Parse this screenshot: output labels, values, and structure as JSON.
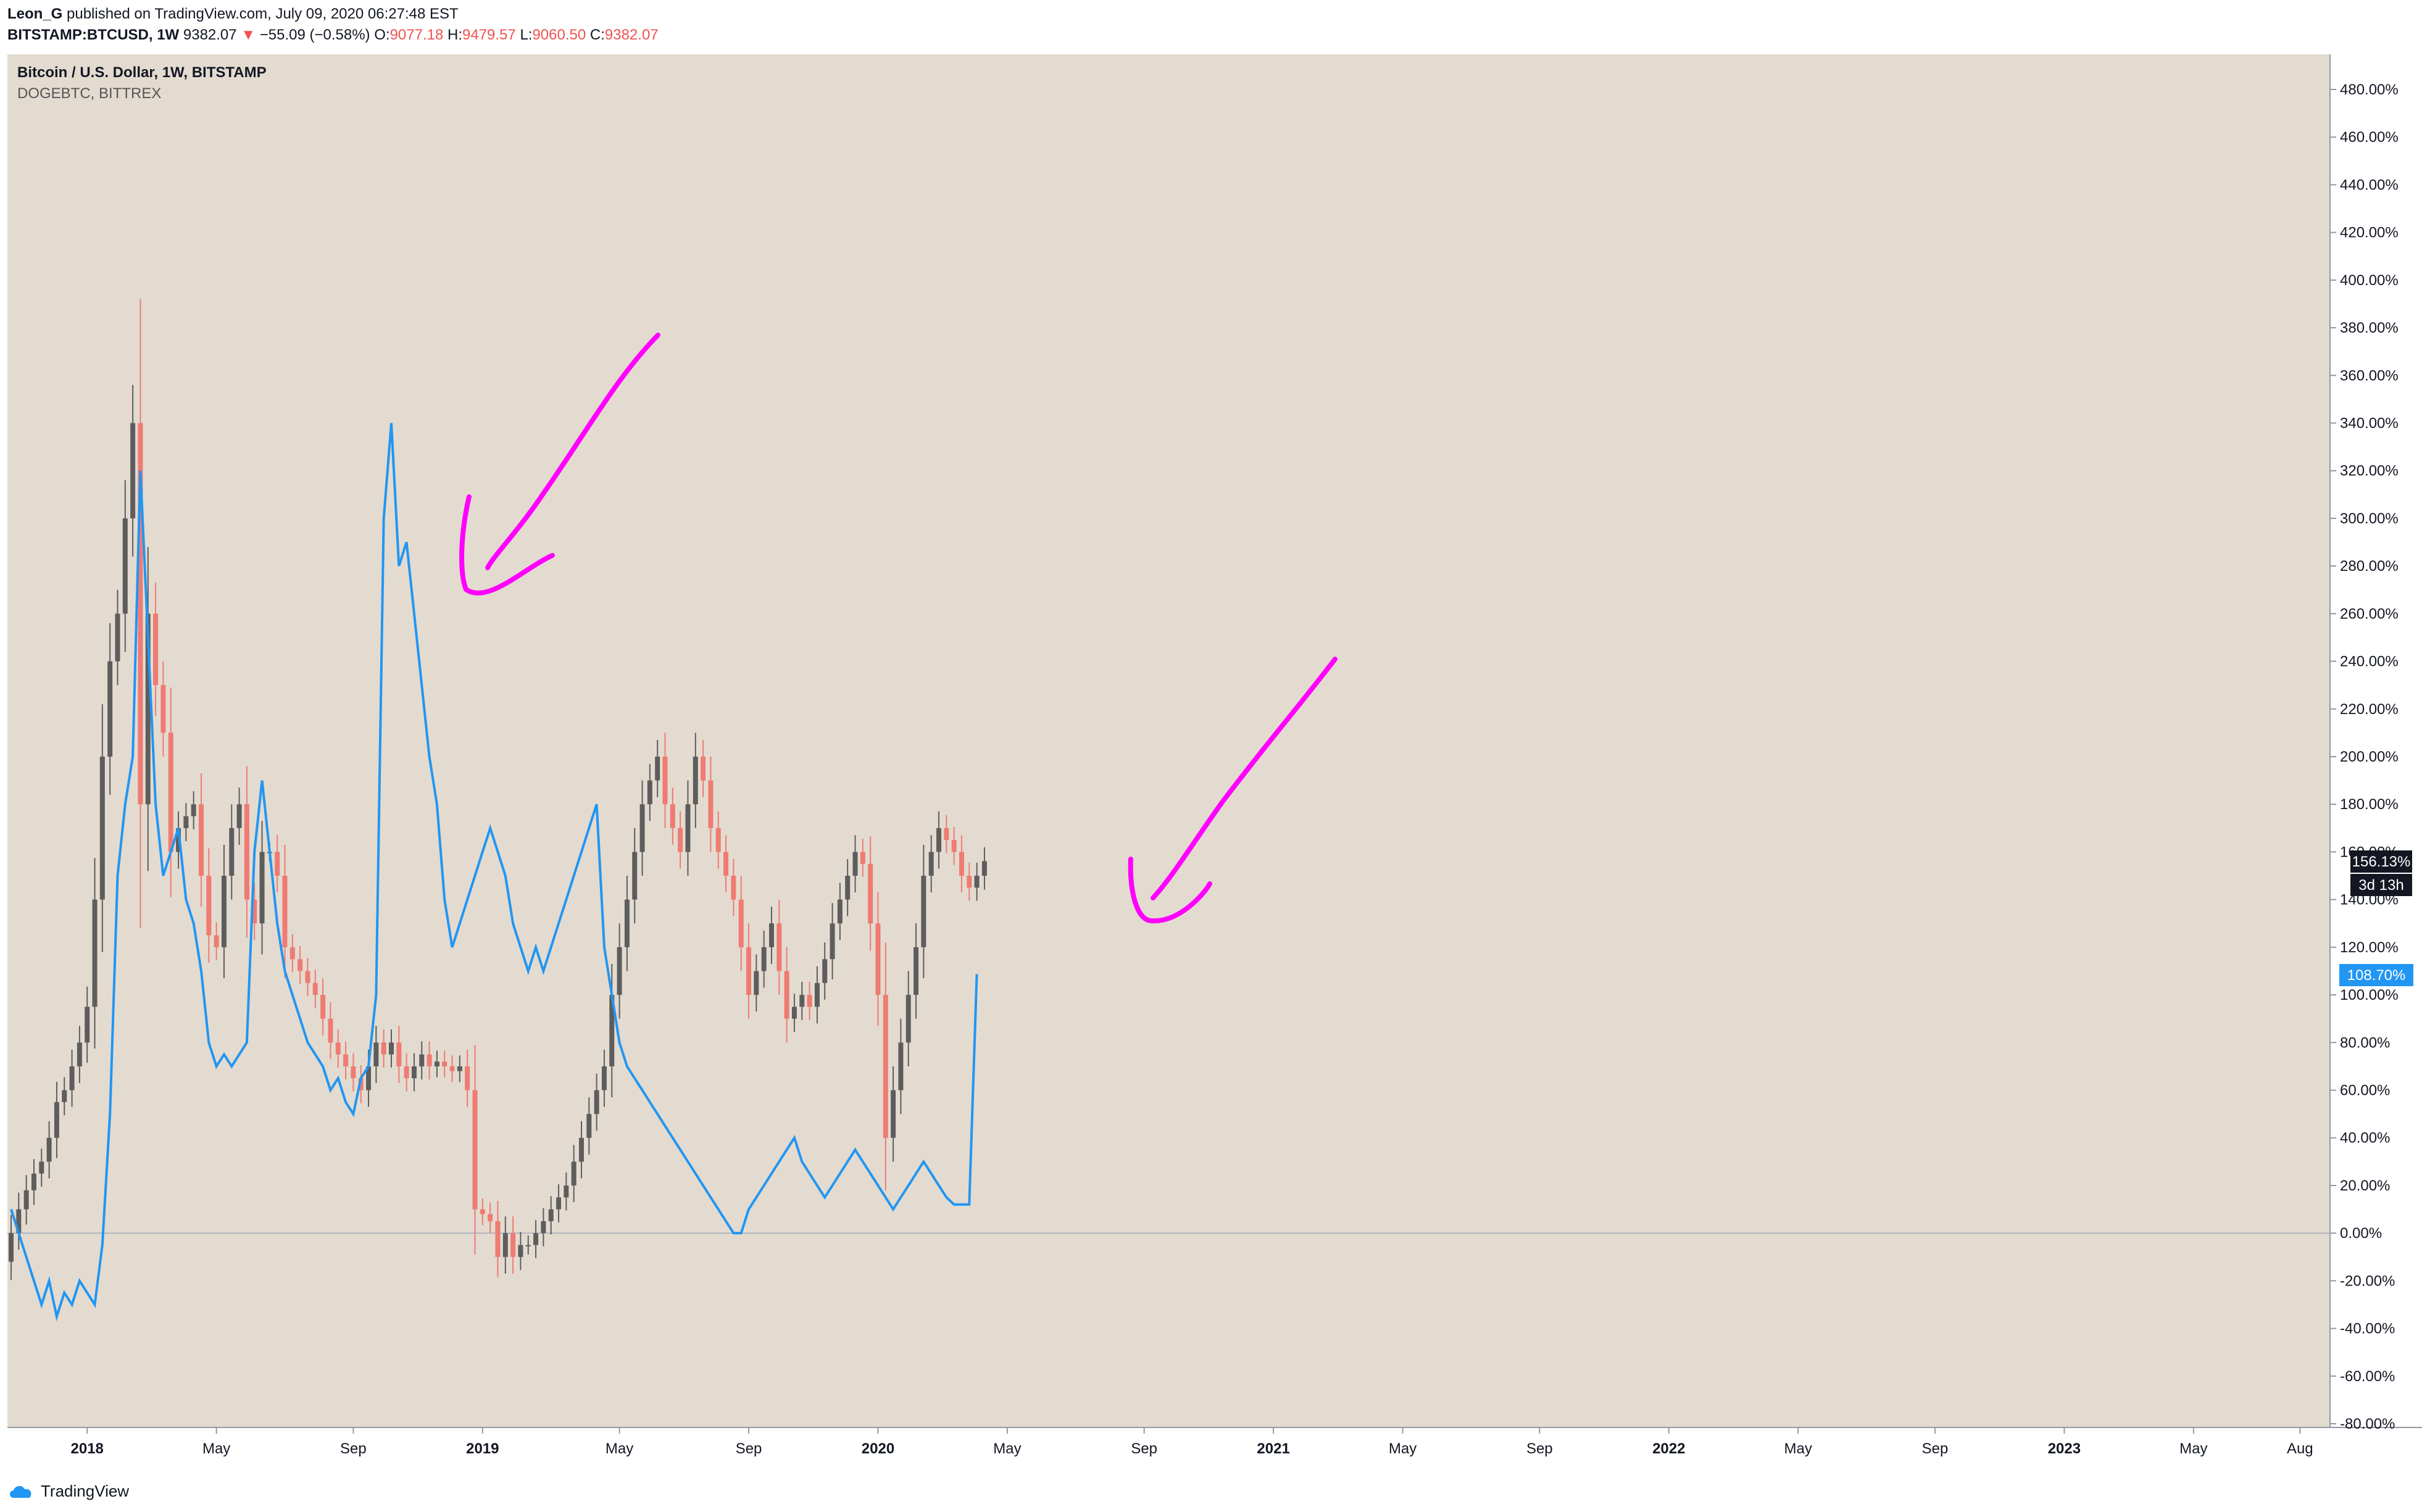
{
  "header": {
    "author": "Leon_G",
    "published": "published on TradingView.com, July 09, 2020 06:27:48 EST",
    "symbol": "BITSTAMP:BTCUSD, 1W",
    "last": "9382.07",
    "change_arrow": "▼",
    "change": "−55.09 (−0.58%)",
    "o_label": "O:",
    "o": "9077.18",
    "h_label": "H:",
    "h": "9479.57",
    "l_label": "L:",
    "l": "9060.50",
    "c_label": "C:",
    "c": "9382.07"
  },
  "legend": {
    "main": "Bitcoin / U.S. Dollar, 1W, BITSTAMP",
    "compare": "DOGEBTC, BITTREX"
  },
  "price_labels": {
    "btc": "156.13%",
    "countdown": "3d 13h",
    "doge": "108.70%"
  },
  "footer": {
    "brand": "TradingView"
  },
  "colors": {
    "background": "#e3dbd0",
    "up": "#5d5d5d",
    "down": "#ef7b72",
    "compare_line": "#2196f3",
    "drawing": "#ff00ff",
    "axis_text": "#131722",
    "doge_label_bg": "#2196f3",
    "btc_label_bg": "#131722"
  },
  "chart_data": {
    "type": "line",
    "title": "Bitcoin / U.S. Dollar, 1W, BITSTAMP",
    "y_axis": {
      "unit": "%",
      "range": [
        -80,
        480
      ],
      "ticks": [
        "480.00%",
        "460.00%",
        "440.00%",
        "420.00%",
        "400.00%",
        "380.00%",
        "360.00%",
        "340.00%",
        "320.00%",
        "300.00%",
        "280.00%",
        "260.00%",
        "240.00%",
        "220.00%",
        "200.00%",
        "180.00%",
        "160.00%",
        "140.00%",
        "120.00%",
        "100.00%",
        "80.00%",
        "60.00%",
        "40.00%",
        "20.00%",
        "0.00%",
        "-20.00%",
        "-40.00%",
        "-60.00%",
        "-80.00%"
      ]
    },
    "x_axis": {
      "ticks": [
        "2018",
        "May",
        "Sep",
        "2019",
        "May",
        "Sep",
        "2020",
        "May",
        "Sep",
        "2021",
        "May",
        "Sep",
        "2022",
        "May",
        "Sep",
        "2023",
        "May",
        "Aug"
      ],
      "tick_weeks": [
        10,
        27,
        45,
        62,
        80,
        97,
        114,
        131,
        149,
        166,
        183,
        201,
        218,
        235,
        253,
        270,
        287,
        301
      ]
    },
    "series": [
      {
        "name": "Bitcoin / U.S. Dollar, 1W, BITSTAMP",
        "style": "candlestick",
        "values": [
          0,
          10,
          18,
          25,
          30,
          40,
          55,
          60,
          70,
          80,
          95,
          140,
          200,
          240,
          260,
          300,
          340,
          180,
          260,
          230,
          210,
          160,
          170,
          175,
          180,
          150,
          125,
          120,
          150,
          170,
          180,
          140,
          130,
          160,
          160,
          150,
          120,
          115,
          110,
          105,
          100,
          90,
          80,
          75,
          70,
          65,
          60,
          70,
          80,
          75,
          80,
          70,
          65,
          70,
          75,
          70,
          72,
          70,
          68,
          70,
          60,
          10,
          8,
          5,
          -10,
          0,
          -10,
          -5,
          -5,
          0,
          5,
          10,
          15,
          20,
          30,
          40,
          50,
          60,
          70,
          100,
          120,
          140,
          160,
          180,
          190,
          200,
          180,
          170,
          160,
          180,
          200,
          190,
          170,
          160,
          150,
          140,
          120,
          100,
          110,
          120,
          130,
          110,
          90,
          95,
          100,
          95,
          105,
          115,
          130,
          140,
          150,
          160,
          155,
          130,
          100,
          40,
          60,
          80,
          100,
          120,
          150,
          160,
          170,
          165,
          160,
          150,
          145,
          150,
          156.13
        ]
      },
      {
        "name": "DOGEBTC, BITTREX",
        "style": "line",
        "values": [
          10,
          0,
          -10,
          -20,
          -30,
          -20,
          -35,
          -25,
          -30,
          -20,
          -25,
          -30,
          -5,
          50,
          150,
          180,
          200,
          320,
          250,
          180,
          150,
          160,
          170,
          140,
          130,
          110,
          80,
          70,
          75,
          70,
          75,
          80,
          160,
          190,
          160,
          130,
          110,
          100,
          90,
          80,
          75,
          70,
          60,
          65,
          55,
          50,
          65,
          70,
          100,
          300,
          340,
          280,
          290,
          260,
          230,
          200,
          180,
          140,
          120,
          130,
          140,
          150,
          160,
          170,
          160,
          150,
          130,
          120,
          110,
          120,
          110,
          120,
          130,
          140,
          150,
          160,
          170,
          180,
          120,
          100,
          80,
          70,
          65,
          60,
          55,
          50,
          45,
          40,
          35,
          30,
          25,
          20,
          15,
          10,
          5,
          0,
          0,
          10,
          15,
          20,
          25,
          30,
          35,
          40,
          30,
          25,
          20,
          15,
          20,
          25,
          30,
          35,
          30,
          25,
          20,
          15,
          10,
          15,
          20,
          25,
          30,
          25,
          20,
          15,
          12,
          12,
          12,
          108.7
        ]
      }
    ],
    "grid": false,
    "legend_position": "top-left"
  }
}
